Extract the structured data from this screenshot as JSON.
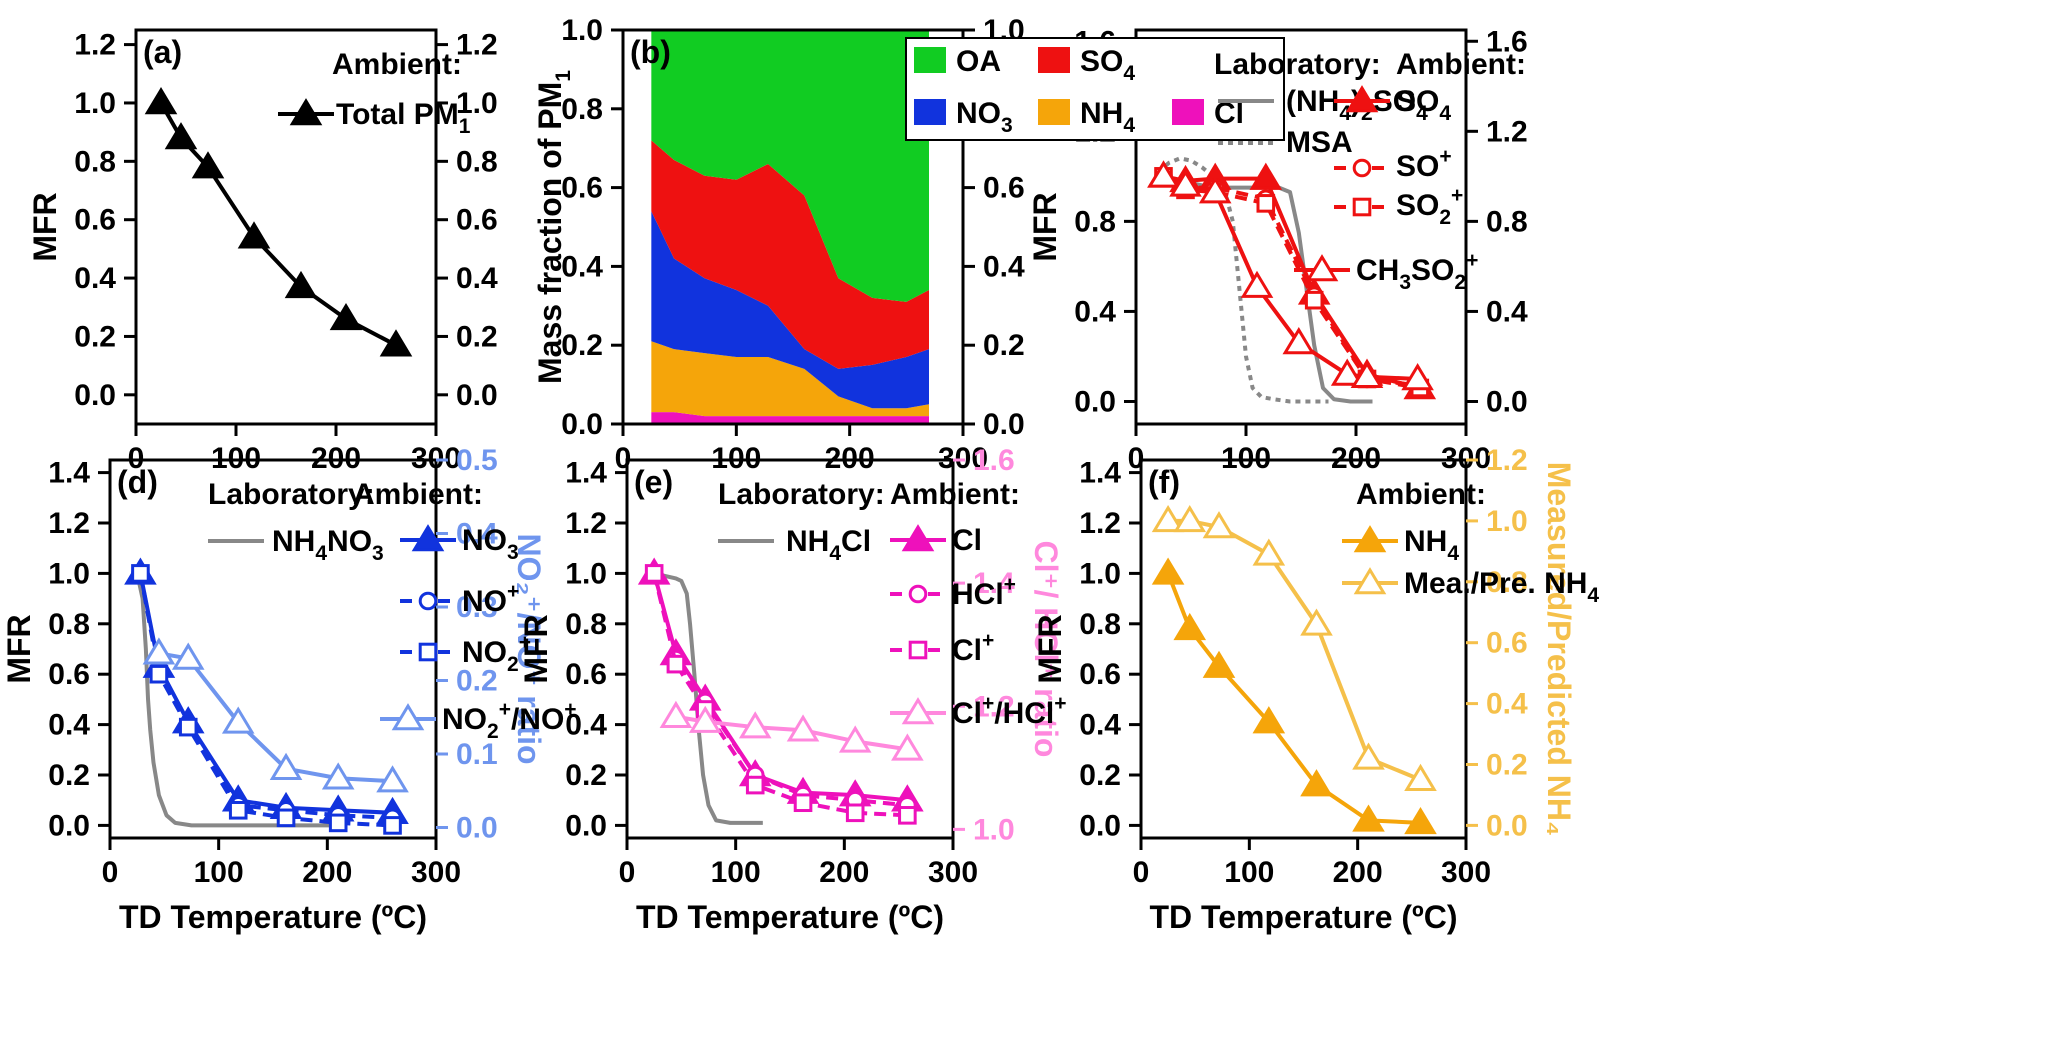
{
  "colors": {
    "black": "#000000",
    "red": "#ee1111",
    "gray": "#888888",
    "blue": "#1133dd",
    "lightblue": "#6f95ee",
    "magenta": "#ee11bb",
    "pink": "#ff88dd",
    "orange": "#f5a50a",
    "lightorange": "#f5c04a",
    "green": "#11cc22"
  },
  "chart_data": [
    {
      "id": "a",
      "type": "line",
      "panel_label": "(a)",
      "xlabel": "",
      "ylabel": "MFR",
      "right_label": "",
      "xlim": [
        0,
        300
      ],
      "ylim": [
        -0.1,
        1.25
      ],
      "rlim": [
        -0.1,
        1.25
      ],
      "xticks": [
        "0",
        "100",
        "200",
        "300"
      ],
      "yticks": [
        "0.0",
        "0.2",
        "0.4",
        "0.6",
        "0.8",
        "1.0",
        "1.2"
      ],
      "rticks": [
        "0.0",
        "0.2",
        "0.4",
        "0.6",
        "0.8",
        "1.0",
        "1.2"
      ],
      "legend": [
        {
          "text": "Ambient:"
        },
        {
          "text": "Total PM",
          "sub": "1"
        }
      ],
      "series": [
        {
          "name": "Total PM1",
          "color": "black",
          "marker": "tri-fill",
          "dash": "solid",
          "x": [
            25,
            45,
            72,
            118,
            165,
            210,
            260
          ],
          "y": [
            1.0,
            0.88,
            0.78,
            0.54,
            0.37,
            0.26,
            0.17
          ]
        }
      ]
    },
    {
      "id": "b",
      "type": "area",
      "panel_label": "(b)",
      "xlabel": "",
      "ylabel": "Mass fraction of PM",
      "ylabel_sub": "1",
      "right_label": "",
      "xlim": [
        0,
        300
      ],
      "ylim": [
        0,
        1.0
      ],
      "rlim": [
        0,
        1.0
      ],
      "xticks": [
        "0",
        "100",
        "200",
        "300"
      ],
      "yticks": [
        "0.0",
        "0.2",
        "0.4",
        "0.6",
        "0.8",
        "1.0"
      ],
      "rticks": [
        "0.0",
        "0.2",
        "0.4",
        "0.6",
        "0.8",
        "1.0"
      ],
      "legend": [
        {
          "text": "OA"
        },
        {
          "text": "SO",
          "sub": "4"
        },
        {
          "text": "NO",
          "sub": "3"
        },
        {
          "text": "NH",
          "sub": "4"
        },
        {
          "text": "Cl"
        }
      ],
      "x": [
        25,
        45,
        72,
        100,
        128,
        160,
        190,
        220,
        250,
        270
      ],
      "series": [
        {
          "name": "Cl",
          "color": "magenta",
          "values": [
            0.03,
            0.03,
            0.02,
            0.02,
            0.02,
            0.02,
            0.02,
            0.02,
            0.02,
            0.02
          ]
        },
        {
          "name": "NH4",
          "color": "orange",
          "values": [
            0.18,
            0.16,
            0.16,
            0.15,
            0.15,
            0.12,
            0.05,
            0.02,
            0.02,
            0.03
          ]
        },
        {
          "name": "NO3",
          "color": "blue",
          "values": [
            0.33,
            0.23,
            0.19,
            0.17,
            0.13,
            0.05,
            0.07,
            0.11,
            0.13,
            0.14
          ]
        },
        {
          "name": "SO4",
          "color": "red",
          "values": [
            0.18,
            0.25,
            0.26,
            0.28,
            0.36,
            0.39,
            0.23,
            0.17,
            0.14,
            0.15
          ]
        },
        {
          "name": "OA",
          "color": "green",
          "values": [
            0.28,
            0.33,
            0.37,
            0.38,
            0.34,
            0.42,
            0.63,
            0.68,
            0.69,
            0.66
          ]
        }
      ]
    },
    {
      "id": "c",
      "type": "line",
      "panel_label": "(c)",
      "xlabel": "",
      "ylabel": "MFR",
      "right_label": "",
      "xlim": [
        0,
        300
      ],
      "ylim": [
        -0.1,
        1.65
      ],
      "rlim": [
        -0.1,
        1.65
      ],
      "xticks": [
        "0",
        "100",
        "200",
        "300"
      ],
      "yticks": [
        "0.0",
        "0.4",
        "0.8",
        "1.2",
        "1.6"
      ],
      "rticks": [
        "0.0",
        "0.4",
        "0.8",
        "1.2",
        "1.6"
      ],
      "legend": [
        {
          "text": "Laboratory:"
        },
        {
          "text": "Ambient:"
        },
        {
          "text": "(NH",
          "sub": "4",
          "text2": ")",
          "sub2": "2",
          "text3": "SO",
          "sub3": "4"
        },
        {
          "text": "SO",
          "sub": "4"
        },
        {
          "text": "MSA"
        },
        {
          "text": "SO",
          "sup": "+"
        },
        {
          "text": "SO",
          "sub": "2",
          "sup": "+"
        },
        {
          "text": "CH",
          "sub": "3",
          "text2": "SO",
          "sub2": "2",
          "sup2": "+"
        }
      ],
      "series": [
        {
          "name": "(NH4)2SO4",
          "color": "gray",
          "marker": "none",
          "dash": "solid",
          "x": [
            20,
            40,
            60,
            80,
            100,
            120,
            130,
            140,
            148,
            155,
            162,
            170,
            180,
            195,
            215
          ],
          "y": [
            1.0,
            0.98,
            0.96,
            0.95,
            0.95,
            0.95,
            0.95,
            0.93,
            0.75,
            0.5,
            0.25,
            0.06,
            0.01,
            0.0,
            0.0
          ]
        },
        {
          "name": "MSA",
          "color": "gray",
          "marker": "none",
          "dash": "dot",
          "x": [
            20,
            30,
            40,
            50,
            60,
            70,
            80,
            88,
            94,
            100,
            106,
            114,
            125,
            140,
            155,
            175
          ],
          "y": [
            1.02,
            1.06,
            1.08,
            1.07,
            1.04,
            1.0,
            0.95,
            0.8,
            0.5,
            0.2,
            0.06,
            0.02,
            0.01,
            0.0,
            0.0,
            0.0
          ]
        },
        {
          "name": "SO4",
          "color": "red",
          "marker": "tri-fill",
          "dash": "solid",
          "x": [
            25,
            45,
            72,
            118,
            162,
            210,
            258
          ],
          "y": [
            1.0,
            0.98,
            0.99,
            0.99,
            0.48,
            0.12,
            0.06
          ]
        },
        {
          "name": "SO+",
          "color": "red",
          "marker": "circle",
          "dash": "dash",
          "x": [
            25,
            45,
            72,
            118,
            162,
            210,
            258
          ],
          "y": [
            1.0,
            0.95,
            0.95,
            0.9,
            0.47,
            0.1,
            0.07
          ]
        },
        {
          "name": "SO2+",
          "color": "red",
          "marker": "square",
          "dash": "dash",
          "x": [
            25,
            45,
            72,
            118,
            162,
            210,
            258
          ],
          "y": [
            1.0,
            0.94,
            0.93,
            0.88,
            0.45,
            0.1,
            0.06
          ]
        },
        {
          "name": "CH3SO2+",
          "color": "red",
          "marker": "tri-open",
          "dash": "solid",
          "x": [
            25,
            45,
            72,
            110,
            148,
            192,
            210,
            256
          ],
          "y": [
            1.0,
            0.96,
            0.93,
            0.51,
            0.26,
            0.12,
            0.11,
            0.1
          ]
        }
      ]
    },
    {
      "id": "d",
      "type": "line",
      "panel_label": "(d)",
      "xlabel": "TD Temperature (ºC)",
      "ylabel": "MFR",
      "right_label": "NO₂⁺/NO⁺ ratio",
      "right_color": "lightblue",
      "xlim": [
        0,
        300
      ],
      "ylim": [
        -0.05,
        1.45
      ],
      "rlim": [
        -0.0143,
        0.5
      ],
      "xticks": [
        "0",
        "100",
        "200",
        "300"
      ],
      "yticks": [
        "0.0",
        "0.2",
        "0.4",
        "0.6",
        "0.8",
        "1.0",
        "1.2",
        "1.4"
      ],
      "rticks": [
        "0.0",
        "0.1",
        "0.2",
        "0.3",
        "0.4",
        "0.5"
      ],
      "legend": [
        {
          "text": "Laboratory:"
        },
        {
          "text": "Ambient:"
        },
        {
          "text": "NH",
          "sub": "4",
          "text2": "NO",
          "sub2": "3"
        },
        {
          "text": "NO",
          "sub": "3"
        },
        {
          "text": "NO",
          "sup": "+"
        },
        {
          "text": "NO",
          "sub": "2",
          "sup": "+"
        },
        {
          "text": "NO",
          "sub": "2",
          "sup": "+",
          "text2": "/NO",
          "sup2": "+"
        }
      ],
      "series": [
        {
          "name": "NH4NO3",
          "color": "gray",
          "marker": "none",
          "dash": "solid",
          "x": [
            25,
            30,
            33,
            35,
            37,
            40,
            45,
            52,
            60,
            75,
            100,
            150,
            205
          ],
          "y": [
            1.0,
            0.9,
            0.7,
            0.5,
            0.38,
            0.25,
            0.12,
            0.04,
            0.01,
            0.0,
            0.0,
            0.0,
            0.0
          ]
        },
        {
          "name": "NO3",
          "color": "blue",
          "marker": "tri-fill",
          "dash": "solid",
          "x": [
            28,
            45,
            72,
            118,
            162,
            210,
            260
          ],
          "y": [
            1.0,
            0.63,
            0.41,
            0.1,
            0.07,
            0.06,
            0.05
          ]
        },
        {
          "name": "NO+",
          "color": "blue",
          "marker": "circle",
          "dash": "dash",
          "x": [
            28,
            45,
            72,
            118,
            162,
            210,
            260
          ],
          "y": [
            1.0,
            0.61,
            0.4,
            0.08,
            0.06,
            0.04,
            0.03
          ]
        },
        {
          "name": "NO2+",
          "color": "blue",
          "marker": "square",
          "dash": "dash",
          "x": [
            28,
            45,
            72,
            118,
            162,
            210,
            260
          ],
          "y": [
            1.0,
            0.6,
            0.39,
            0.06,
            0.03,
            0.01,
            0.0
          ]
        },
        {
          "name": "NO2+/NO+ ratio",
          "color": "lightblue",
          "marker": "tri-open",
          "dash": "solid",
          "axis": "right",
          "x": [
            45,
            72,
            118,
            162,
            210,
            260
          ],
          "y": [
            0.237,
            0.23,
            0.143,
            0.08,
            0.067,
            0.063
          ]
        }
      ]
    },
    {
      "id": "e",
      "type": "line",
      "panel_label": "(e)",
      "xlabel": "TD Temperature (ºC)",
      "ylabel": "MFR",
      "right_label": "Cl⁺/ HCl⁺ ratio",
      "right_color": "pink",
      "xlim": [
        0,
        300
      ],
      "ylim": [
        -0.05,
        1.45
      ],
      "rlim": [
        0.986,
        1.6
      ],
      "xticks": [
        "0",
        "100",
        "200",
        "300"
      ],
      "yticks": [
        "0.0",
        "0.2",
        "0.4",
        "0.6",
        "0.8",
        "1.0",
        "1.2",
        "1.4"
      ],
      "rticks": [
        "1.0",
        "1.2",
        "1.4",
        "1.6"
      ],
      "legend": [
        {
          "text": "Laboratory:"
        },
        {
          "text": "Ambient:"
        },
        {
          "text": "NH",
          "sub": "4",
          "text2": "Cl"
        },
        {
          "text": "Cl"
        },
        {
          "text": "HCl",
          "sup": "+"
        },
        {
          "text": "Cl",
          "sup": "+"
        },
        {
          "text": "Cl",
          "sup": "+",
          "text2": "/HCl",
          "sup2": "+"
        }
      ],
      "series": [
        {
          "name": "NH4Cl",
          "color": "gray",
          "marker": "none",
          "dash": "solid",
          "x": [
            25,
            35,
            45,
            50,
            55,
            58,
            62,
            66,
            70,
            75,
            82,
            95,
            125
          ],
          "y": [
            1.0,
            0.99,
            0.98,
            0.97,
            0.92,
            0.8,
            0.6,
            0.38,
            0.2,
            0.08,
            0.02,
            0.01,
            0.01
          ]
        },
        {
          "name": "Cl",
          "color": "magenta",
          "marker": "tri-fill",
          "dash": "solid",
          "x": [
            25,
            45,
            72,
            118,
            162,
            210,
            258
          ],
          "y": [
            1.0,
            0.68,
            0.5,
            0.2,
            0.13,
            0.12,
            0.1
          ]
        },
        {
          "name": "HCl+",
          "color": "magenta",
          "marker": "circle",
          "dash": "dash",
          "x": [
            25,
            45,
            72,
            118,
            162,
            210,
            258
          ],
          "y": [
            1.0,
            0.66,
            0.49,
            0.2,
            0.12,
            0.1,
            0.08
          ]
        },
        {
          "name": "Cl+",
          "color": "magenta",
          "marker": "square",
          "dash": "dash",
          "x": [
            25,
            45,
            72,
            118,
            162,
            210,
            258
          ],
          "y": [
            1.0,
            0.64,
            0.46,
            0.16,
            0.09,
            0.05,
            0.04
          ]
        },
        {
          "name": "Cl+/HCl+ ratio",
          "color": "pink",
          "marker": "tri-open",
          "dash": "solid",
          "axis": "right",
          "x": [
            45,
            72,
            118,
            162,
            210,
            258
          ],
          "y": [
            1.183,
            1.175,
            1.166,
            1.161,
            1.143,
            1.13
          ]
        }
      ]
    },
    {
      "id": "f",
      "type": "line",
      "panel_label": "(f)",
      "xlabel": "TD Temperature (ºC)",
      "ylabel": "MFR",
      "right_label": "Measured/Predicted NH₄",
      "right_color": "lightorange",
      "xlim": [
        0,
        300
      ],
      "ylim": [
        -0.05,
        1.45
      ],
      "rlim": [
        -0.0414,
        1.2
      ],
      "xticks": [
        "0",
        "100",
        "200",
        "300"
      ],
      "yticks": [
        "0.0",
        "0.2",
        "0.4",
        "0.6",
        "0.8",
        "1.0",
        "1.2",
        "1.4"
      ],
      "rticks": [
        "0.0",
        "0.2",
        "0.4",
        "0.6",
        "0.8",
        "1.0",
        "1.2"
      ],
      "legend": [
        {
          "text": "Ambient:"
        },
        {
          "text": "NH",
          "sub": "4"
        },
        {
          "text": "Mea./Pre. NH",
          "sub": "4"
        }
      ],
      "series": [
        {
          "name": "NH4",
          "color": "orange",
          "marker": "tri-fill",
          "dash": "solid",
          "x": [
            25,
            45,
            72,
            118,
            162,
            210,
            258
          ],
          "y": [
            1.0,
            0.78,
            0.63,
            0.41,
            0.16,
            0.02,
            0.01
          ]
        },
        {
          "name": "Mea./Pre. NH4",
          "color": "lightorange",
          "marker": "tri-open",
          "dash": "solid",
          "axis": "right",
          "x": [
            25,
            45,
            72,
            118,
            162,
            210,
            258
          ],
          "y": [
            1.0,
            1.0,
            0.98,
            0.89,
            0.66,
            0.22,
            0.15
          ]
        }
      ]
    }
  ]
}
